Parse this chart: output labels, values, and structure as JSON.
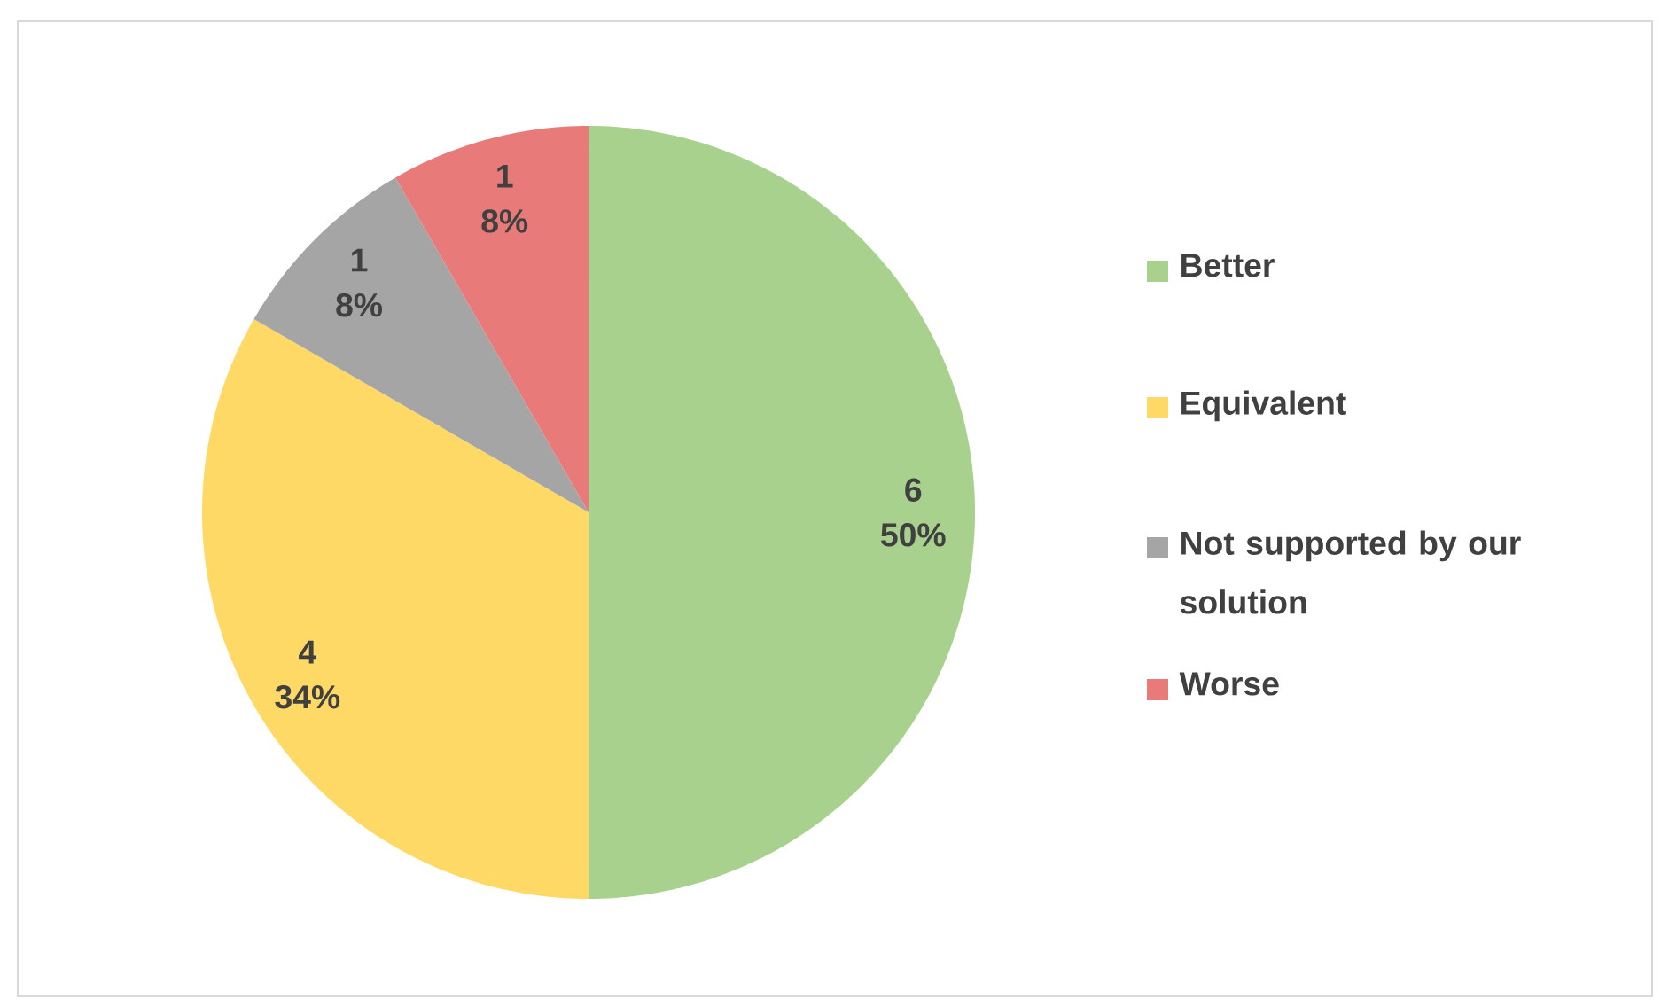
{
  "chart_data": {
    "type": "pie",
    "categories": [
      "Better",
      "Equivalent",
      "Not supported by our solution",
      "Worse"
    ],
    "values": [
      6,
      4,
      1,
      1
    ],
    "colors": [
      "#a9d18e",
      "#ffd966",
      "#a5a5a5",
      "#e97a7a"
    ],
    "value_labels": [
      "6",
      "4",
      "1",
      "1"
    ],
    "annotations": [
      {
        "text": "50%",
        "x": "Better"
      },
      {
        "text": "34%",
        "x": "Equivalent"
      },
      {
        "text": "8%",
        "x": "Not supported by our solution"
      },
      {
        "text": "8%",
        "x": "Worse"
      }
    ],
    "legend": "right"
  }
}
